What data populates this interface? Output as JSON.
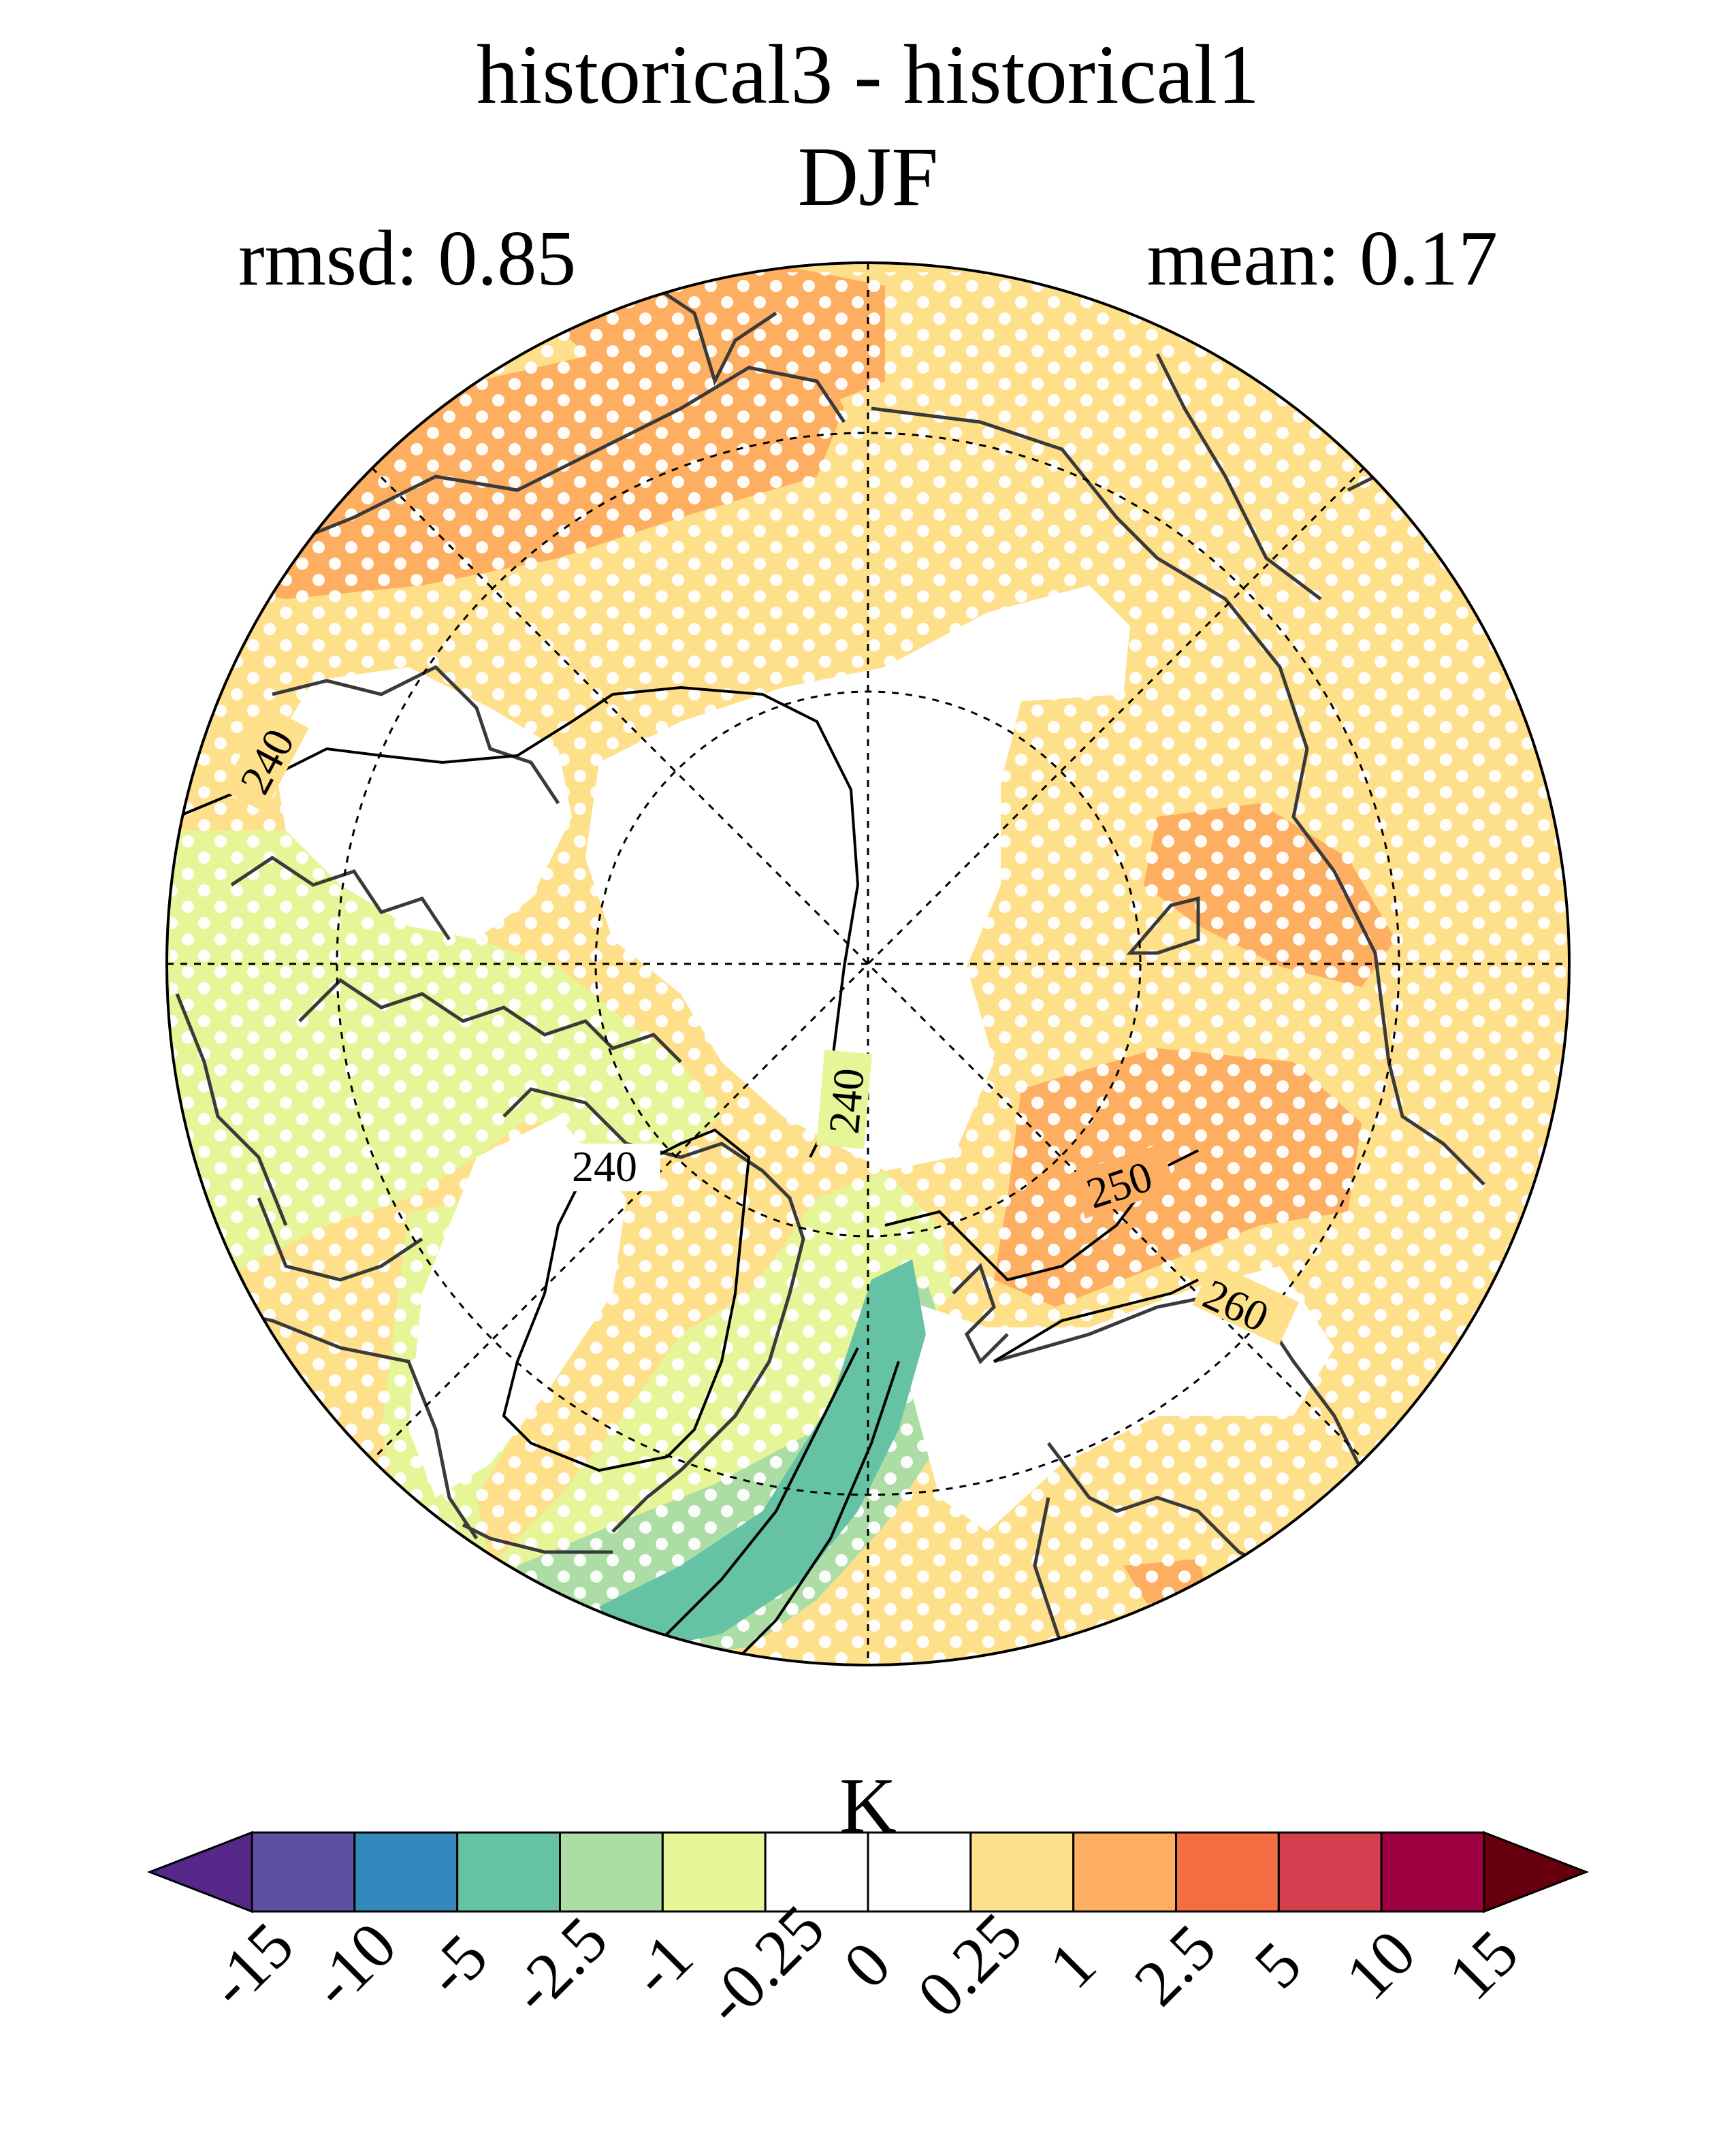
{
  "figure": {
    "title": "historical3 - historical1",
    "season": "DJF",
    "rmsd_text": "rmsd: 0.85",
    "mean_text": "mean: 0.17"
  },
  "map": {
    "projection": "north-polar-stereographic",
    "stippling": "white dots over significant regions",
    "contour_labels": [
      "240",
      "240",
      "240",
      "240",
      "250",
      "260"
    ]
  },
  "colorbar": {
    "unit": "K",
    "ticks": [
      "-15",
      "-10",
      "-5",
      "-2.5",
      "-1",
      "-0.25",
      "0",
      "0.25",
      "1",
      "2.5",
      "5",
      "10",
      "15"
    ],
    "colors": [
      "#542788",
      "#5e4fa2",
      "#3288bd",
      "#66c2a5",
      "#abdda4",
      "#e6f598",
      "#ffffff",
      "#ffffff",
      "#fee08b",
      "#fdae61",
      "#f46d43",
      "#d53e4f",
      "#9e0142",
      "#67000d"
    ]
  },
  "colors": {
    "land_outline": "#3a3a3a",
    "stipple": "#ffffff"
  }
}
